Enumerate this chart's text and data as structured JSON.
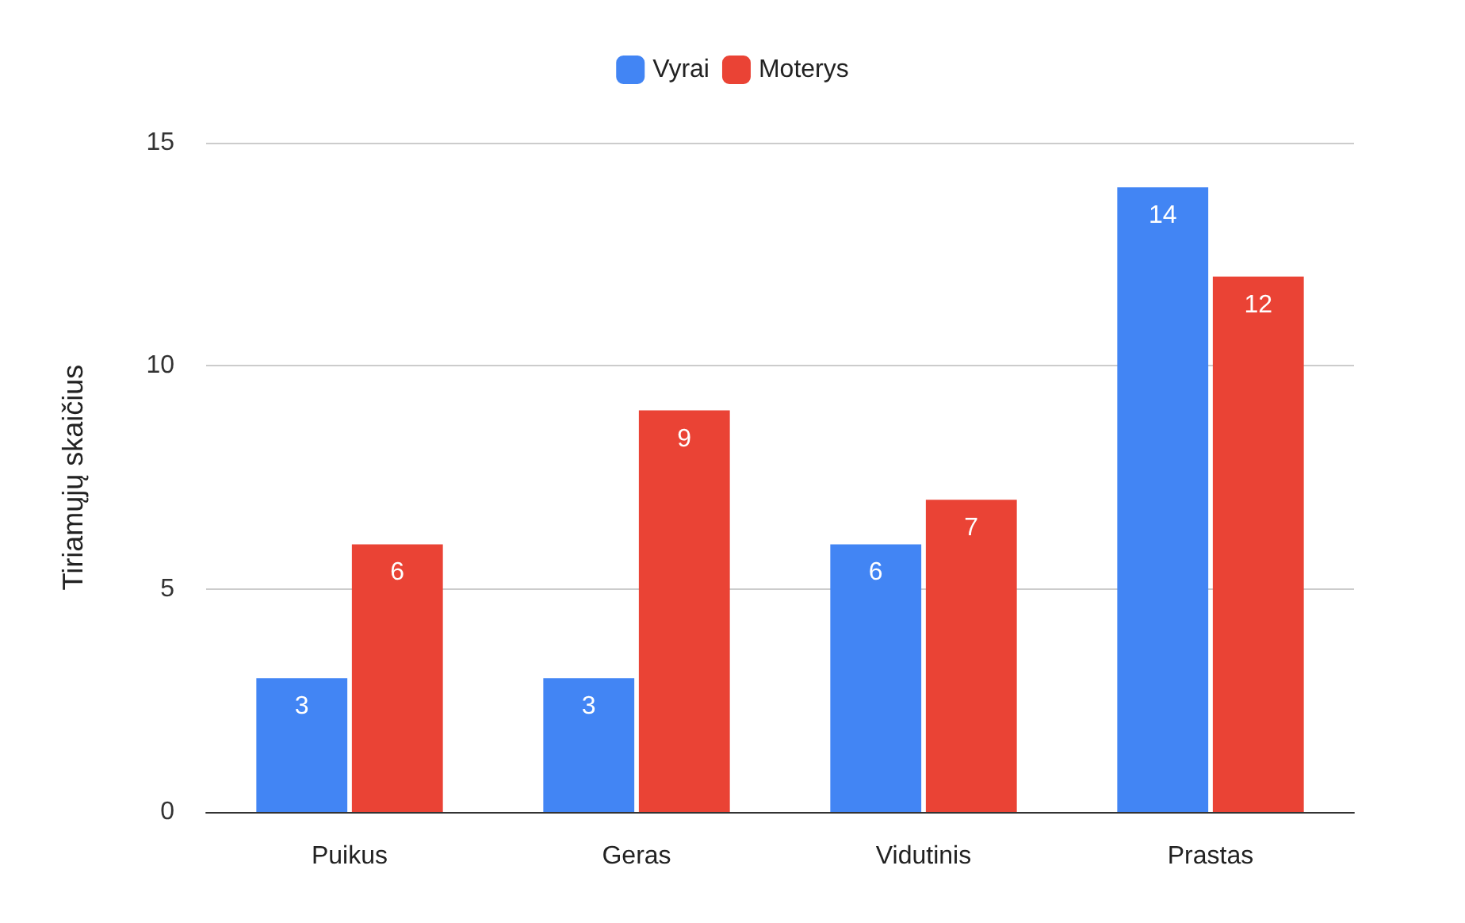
{
  "chart_data": {
    "type": "bar",
    "ylabel": "Tiriamųjų skaičius",
    "categories": [
      "Puikus",
      "Geras",
      "Vidutinis",
      "Prastas"
    ],
    "series": [
      {
        "name": "Vyrai",
        "color": "#4285f4",
        "values": [
          3,
          3,
          6,
          14
        ]
      },
      {
        "name": "Moterys",
        "color": "#ea4335",
        "values": [
          6,
          9,
          7,
          12
        ]
      }
    ],
    "ylim": [
      0,
      15
    ],
    "yticks": [
      0,
      5,
      10,
      15
    ],
    "grid": "y",
    "legend": "top",
    "data_labels": true
  }
}
